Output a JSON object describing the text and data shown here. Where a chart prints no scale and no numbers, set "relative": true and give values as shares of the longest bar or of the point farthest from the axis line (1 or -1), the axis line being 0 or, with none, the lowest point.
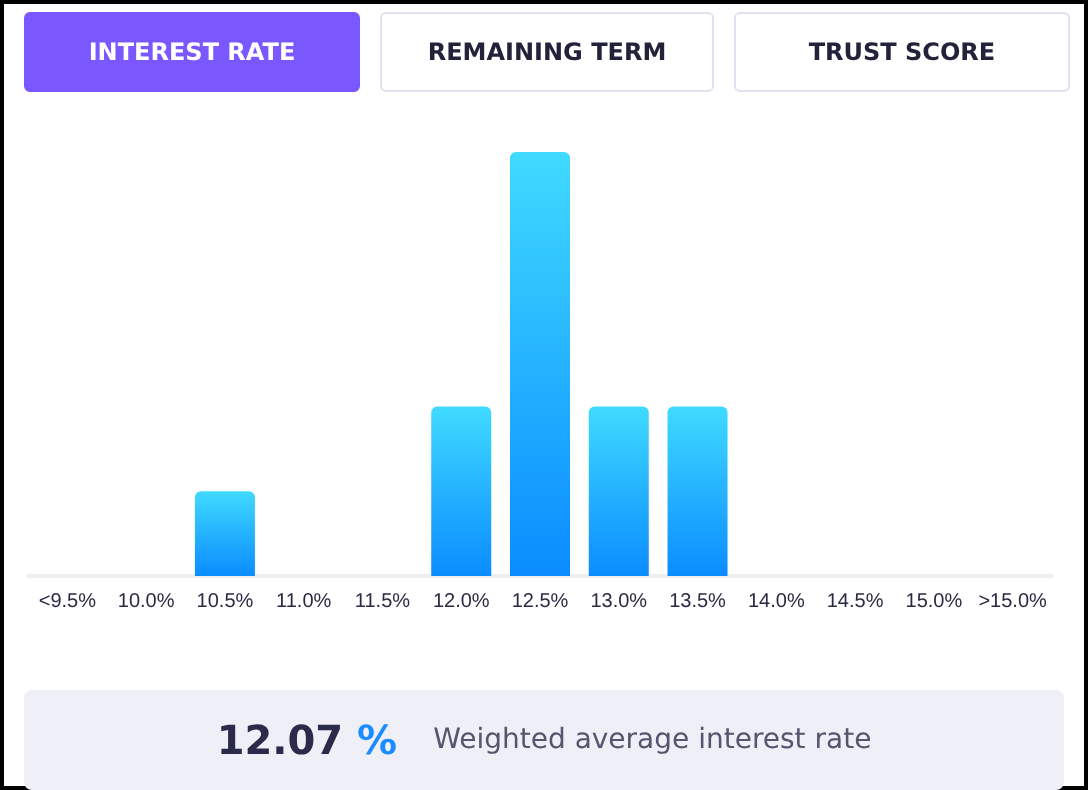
{
  "chart_data": {
    "type": "bar",
    "relative": true,
    "categories": [
      "<9.5%",
      "10.0%",
      "10.5%",
      "11.0%",
      "11.5%",
      "12.0%",
      "12.5%",
      "13.0%",
      "13.5%",
      "14.0%",
      "14.5%",
      "15.0%",
      ">15.0%"
    ],
    "values": [
      0,
      0,
      0.2,
      0,
      0,
      0.4,
      1,
      0.4,
      0.4,
      0,
      0,
      0,
      0
    ],
    "color": "#0a8cff",
    "annotations": [
      "INTEREST RATE",
      "REMAINING TERM",
      "TRUST SCORE",
      "12.07 %",
      "Weighted average interest rate"
    ]
  }
}
